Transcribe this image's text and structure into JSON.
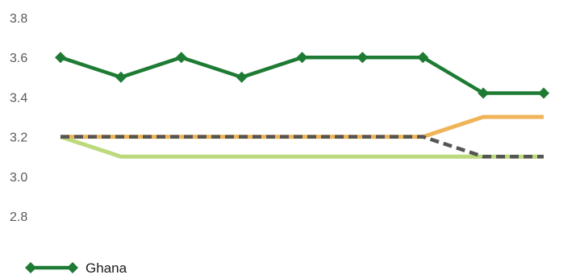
{
  "chart_data": {
    "type": "line",
    "title": "",
    "xlabel": "",
    "ylabel": "",
    "ylim": [
      2.8,
      3.8
    ],
    "yticks": [
      "3.8",
      "3.6",
      "3.4",
      "3.2",
      "3.0",
      "2.8"
    ],
    "grid": false,
    "legend_position": "bottom-left",
    "x_count": 9,
    "series": [
      {
        "name": "",
        "color": "#bcd97c",
        "style": "solid",
        "marker": "none",
        "values": [
          3.2,
          3.1,
          3.1,
          3.1,
          3.1,
          3.1,
          3.1,
          3.1,
          3.1
        ]
      },
      {
        "name": "",
        "color": "#f0b458",
        "style": "solid",
        "marker": "none",
        "values": [
          3.2,
          3.2,
          3.2,
          3.2,
          3.2,
          3.2,
          3.2,
          3.3,
          3.3
        ]
      },
      {
        "name": "",
        "color": "#555555",
        "style": "dashed",
        "marker": "none",
        "values": [
          3.2,
          3.2,
          3.2,
          3.2,
          3.2,
          3.2,
          3.2,
          3.1,
          3.1
        ]
      },
      {
        "name": "Ghana",
        "color": "#1e7b34",
        "style": "solid",
        "marker": "diamond",
        "values": [
          3.6,
          3.5,
          3.6,
          3.5,
          3.6,
          3.6,
          3.6,
          3.42,
          3.42
        ]
      }
    ]
  }
}
